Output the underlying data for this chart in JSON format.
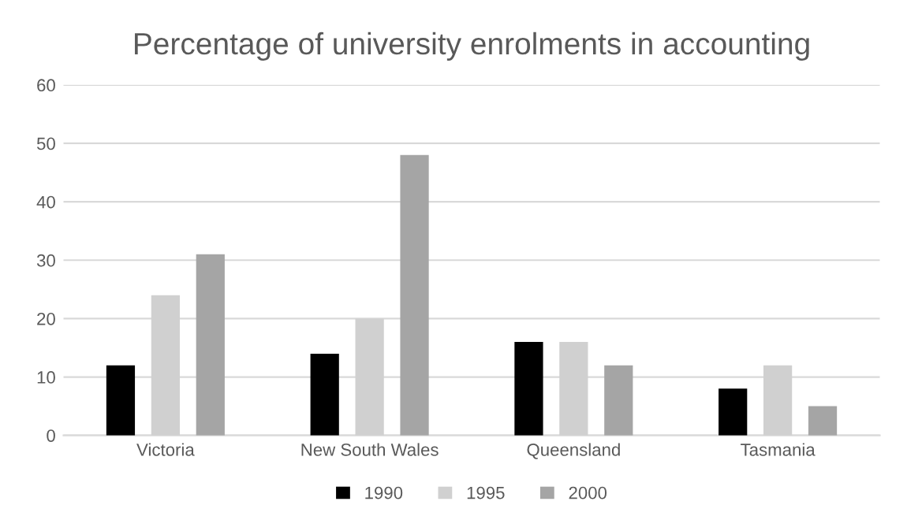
{
  "chart_data": {
    "type": "bar",
    "title": "Percentage of university enrolments in accounting",
    "categories": [
      "Victoria",
      "New South Wales",
      "Queensland",
      "Tasmania"
    ],
    "series": [
      {
        "name": "1990",
        "color": "#000000",
        "values": [
          12,
          14,
          16,
          8
        ]
      },
      {
        "name": "1995",
        "color": "#d0d0d0",
        "values": [
          24,
          20,
          16,
          12
        ]
      },
      {
        "name": "2000",
        "color": "#a5a5a5",
        "values": [
          31,
          48,
          12,
          5
        ]
      }
    ],
    "ylim": [
      0,
      60
    ],
    "yticks": [
      0,
      10,
      20,
      30,
      40,
      50,
      60
    ],
    "grid": "y",
    "legend": "bottom"
  }
}
